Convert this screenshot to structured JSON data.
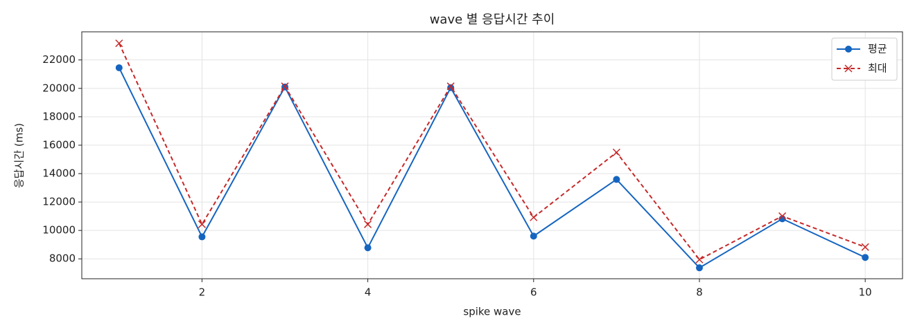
{
  "chart_data": {
    "type": "line",
    "title": "wave 별 응답시간 추이",
    "xlabel": "spike wave",
    "ylabel": "응답시간 (ms)",
    "x": [
      1,
      2,
      3,
      4,
      5,
      6,
      7,
      8,
      9,
      10
    ],
    "series": [
      {
        "name": "평균",
        "color": "#1565c0",
        "marker": "o",
        "dash": "solid",
        "values": [
          21450,
          9550,
          20100,
          8780,
          20050,
          9600,
          13590,
          7370,
          10820,
          8100
        ]
      },
      {
        "name": "최대",
        "color": "#c62828",
        "marker": "x",
        "dash": "dashed",
        "values": [
          23170,
          10430,
          20150,
          10430,
          20150,
          10920,
          15490,
          7950,
          11010,
          8830
        ]
      }
    ],
    "xlim": [
      0.55,
      10.45
    ],
    "ylim": [
      6600,
      23980
    ],
    "xticks": [
      2,
      4,
      6,
      8,
      10
    ],
    "yticks": [
      8000,
      10000,
      12000,
      14000,
      16000,
      18000,
      20000,
      22000
    ],
    "grid": true,
    "legend": "upper right"
  }
}
